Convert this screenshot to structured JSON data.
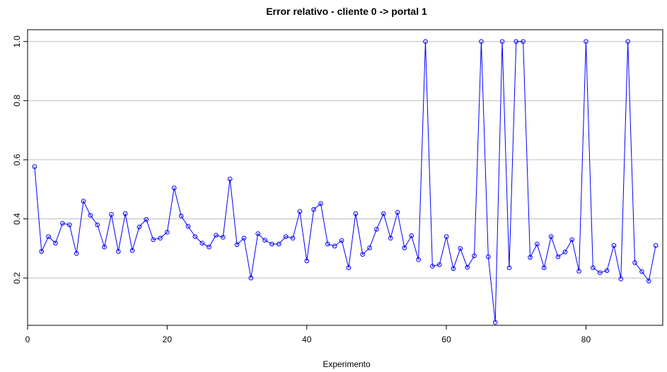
{
  "chart_data": {
    "type": "line",
    "title": "Error relativo - cliente 0 -> portal 1",
    "xlabel": "Experimento",
    "ylabel": "",
    "xlim": [
      0,
      91
    ],
    "ylim": [
      0.04,
      1.04
    ],
    "x_ticks": [
      0,
      20,
      40,
      60,
      80
    ],
    "y_ticks": [
      0.2,
      0.4,
      0.6,
      0.8,
      1.0
    ],
    "y_tick_labels": [
      "0.2",
      "0.4",
      "0.6",
      "0.8",
      "1.0"
    ],
    "grid": "horizontal",
    "series": [
      {
        "color": "#0000ff",
        "markers": "open-circle",
        "x": [
          1,
          2,
          3,
          4,
          5,
          6,
          7,
          8,
          9,
          10,
          11,
          12,
          13,
          14,
          15,
          16,
          17,
          18,
          19,
          20,
          21,
          22,
          23,
          24,
          25,
          26,
          27,
          28,
          29,
          30,
          31,
          32,
          33,
          34,
          35,
          36,
          37,
          38,
          39,
          40,
          41,
          42,
          43,
          44,
          45,
          46,
          47,
          48,
          49,
          50,
          51,
          52,
          53,
          54,
          55,
          56,
          57,
          58,
          59,
          60,
          61,
          62,
          63,
          64,
          65,
          66,
          67,
          68,
          69,
          70,
          71,
          72,
          73,
          74,
          75,
          76,
          77,
          78,
          79,
          80,
          81,
          82,
          83,
          84,
          85,
          86,
          87,
          88,
          89,
          90
        ],
        "values": [
          0.577,
          0.29,
          0.34,
          0.318,
          0.385,
          0.38,
          0.283,
          0.46,
          0.412,
          0.38,
          0.305,
          0.415,
          0.29,
          0.418,
          0.293,
          0.373,
          0.398,
          0.33,
          0.335,
          0.355,
          0.505,
          0.41,
          0.375,
          0.34,
          0.318,
          0.305,
          0.345,
          0.338,
          0.535,
          0.313,
          0.335,
          0.2,
          0.35,
          0.328,
          0.315,
          0.315,
          0.34,
          0.335,
          0.425,
          0.258,
          0.432,
          0.452,
          0.315,
          0.308,
          0.327,
          0.235,
          0.418,
          0.28,
          0.302,
          0.365,
          0.418,
          0.335,
          0.422,
          0.302,
          0.343,
          0.262,
          1.0,
          0.24,
          0.245,
          0.34,
          0.232,
          0.3,
          0.236,
          0.275,
          1.0,
          0.272,
          0.05,
          1.0,
          0.235,
          1.0,
          1.0,
          0.27,
          0.315,
          0.235,
          0.34,
          0.272,
          0.288,
          0.33,
          0.223,
          1.0,
          0.235,
          0.218,
          0.225,
          0.31,
          0.197,
          1.0,
          0.252,
          0.222,
          0.19,
          0.31
        ]
      }
    ]
  }
}
